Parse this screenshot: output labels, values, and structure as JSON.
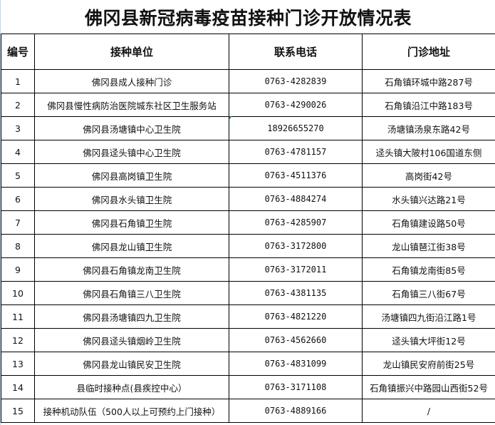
{
  "title": "佛冈县新冠病毒疫苗接种门诊开放情况表",
  "headers": [
    "编号",
    "接种单位",
    "联系电话",
    "门诊地址"
  ],
  "rows": [
    [
      "1",
      "佛冈县成人接种门诊",
      "0763-4282839",
      "石角镇环城中路287号"
    ],
    [
      "2",
      "佛冈县慢性病防治医院城东社区卫生服务站",
      "0763-4290026",
      "石角镇沿江中路183号"
    ],
    [
      "3",
      "佛冈县汤塘镇中心卫生院",
      "18926655270",
      "汤塘镇汤泉东路42号"
    ],
    [
      "4",
      "佛冈县迳头镇中心卫生院",
      "0763-4781157",
      "迳头镇大陂村106国道东侧"
    ],
    [
      "5",
      "佛冈县高岗镇卫生院",
      "0763-4511376",
      "高岗街42号"
    ],
    [
      "6",
      "佛冈县水头镇卫生院",
      "0763-4884274",
      "水头镇兴达路21号"
    ],
    [
      "7",
      "佛冈县石角镇卫生院",
      "0763-4285907",
      "石角镇建设路50号"
    ],
    [
      "8",
      "佛冈县龙山镇卫生院",
      "0763-3172800",
      "龙山镇琶江街38号"
    ],
    [
      "9",
      "佛冈县石角镇龙南卫生院",
      "0763-3172011",
      "石角镇龙南街85号"
    ],
    [
      "10",
      "佛冈县石角镇三八卫生院",
      "0763-4381135",
      "石角镇三八街67号"
    ],
    [
      "11",
      "佛冈县汤塘镇四九卫生院",
      "0763-4821220",
      "汤塘镇四九街沿江路1号"
    ],
    [
      "12",
      "佛冈县迳头镇烟岭卫生院",
      "0763-4562660",
      "迳头镇大坪街12号"
    ],
    [
      "13",
      "佛冈县龙山镇民安卫生院",
      "0763-4831099",
      "龙山镇民安府前街25号"
    ],
    [
      "14",
      "县临时接种点(县疾控中心）",
      "0763-3171108",
      "石角镇振兴中路园山西街52号"
    ],
    [
      "15",
      "接种机动队伍（500人以上可预约上门接种）",
      "0763-4889166",
      "/"
    ]
  ]
}
